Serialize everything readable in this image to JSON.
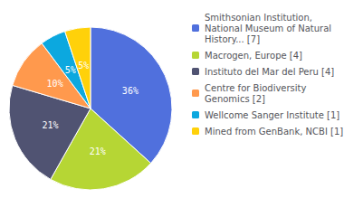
{
  "chart_data": {
    "type": "pie",
    "categories": [
      "Smithsonian Institution,\nNational Museum of Natural\nHistory... [7]",
      "Macrogen, Europe [4]",
      "Instituto del Mar del Peru [4]",
      "Centre for Biodiversity\nGenomics [2]",
      "Wellcome Sanger Institute [1]",
      "Mined from GenBank, NCBI [1]"
    ],
    "values": [
      36,
      21,
      21,
      10,
      5,
      5
    ],
    "value_labels": [
      "36%",
      "21%",
      "21%",
      "10%",
      "5%",
      "5%"
    ],
    "data_labels": true,
    "legend": "upper right"
  }
}
